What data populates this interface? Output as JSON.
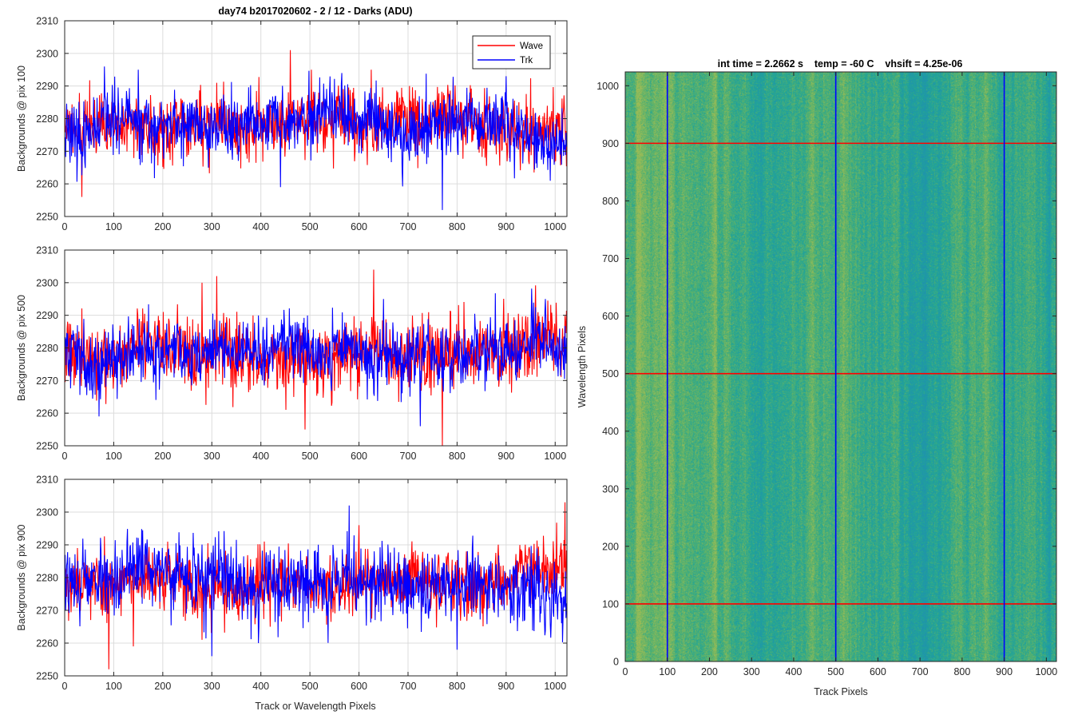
{
  "figure_title": "day74 b2017020602 - 2 / 12 - Darks (ADU)",
  "colors": {
    "wave": "#ff0000",
    "trk": "#0000ff",
    "grid": "#dcdcdc",
    "axis": "#262626"
  },
  "legend": {
    "wave": "Wave",
    "trk": "Trk",
    "placement": "top-right"
  },
  "chart_data": [
    {
      "type": "line",
      "panel": "top",
      "title": "day74 b2017020602 - 2 / 12 - Darks (ADU)",
      "ylabel": "Backgrounds @ pix 100",
      "xlabel": "",
      "xlim": [
        0,
        1024
      ],
      "ylim": [
        2250,
        2310
      ],
      "xticks": [
        "0",
        "100",
        "200",
        "300",
        "400",
        "500",
        "600",
        "700",
        "800",
        "900",
        "1000"
      ],
      "yticks": [
        "2250",
        "2260",
        "2270",
        "2280",
        "2290",
        "2300",
        "2310"
      ],
      "grid": true,
      "legend": [
        "Wave",
        "Trk"
      ],
      "series": [
        {
          "name": "Wave",
          "n_points": 1024,
          "mean": 2278,
          "spread": 5,
          "seed": 11,
          "notable": [
            [
              35,
              2256
            ],
            [
              460,
              2301
            ],
            [
              310,
              2291
            ],
            [
              625,
              2295
            ]
          ]
        },
        {
          "name": "Trk",
          "n_points": 1024,
          "mean": 2276.5,
          "spread": 5,
          "seed": 23,
          "notable": [
            [
              440,
              2259
            ],
            [
              770,
              2252
            ],
            [
              900,
              2293
            ],
            [
              150,
              2295
            ]
          ]
        }
      ]
    },
    {
      "type": "line",
      "panel": "middle",
      "ylabel": "Backgrounds @ pix 500",
      "xlabel": "",
      "xlim": [
        0,
        1024
      ],
      "ylim": [
        2250,
        2310
      ],
      "xticks": [
        "0",
        "100",
        "200",
        "300",
        "400",
        "500",
        "600",
        "700",
        "800",
        "900",
        "1000"
      ],
      "yticks": [
        "2250",
        "2260",
        "2270",
        "2280",
        "2290",
        "2300",
        "2310"
      ],
      "grid": true,
      "series": [
        {
          "name": "Wave",
          "n_points": 1024,
          "mean": 2278.5,
          "spread": 5.5,
          "seed": 37,
          "notable": [
            [
              310,
              2302
            ],
            [
              490,
              2255
            ],
            [
              630,
              2304
            ],
            [
              770,
              2250
            ],
            [
              280,
              2300
            ]
          ]
        },
        {
          "name": "Trk",
          "n_points": 1024,
          "mean": 2278.5,
          "spread": 5,
          "seed": 41,
          "notable": [
            [
              70,
              2259
            ],
            [
              725,
              2256
            ],
            [
              980,
              2295
            ],
            [
              650,
              2295
            ]
          ]
        }
      ]
    },
    {
      "type": "line",
      "panel": "bottom",
      "ylabel": "Backgrounds @ pix 900",
      "xlabel": "Track or Wavelength Pixels",
      "xlim": [
        0,
        1024
      ],
      "ylim": [
        2250,
        2310
      ],
      "xticks": [
        "0",
        "100",
        "200",
        "300",
        "400",
        "500",
        "600",
        "700",
        "800",
        "900",
        "1000"
      ],
      "yticks": [
        "2250",
        "2260",
        "2270",
        "2280",
        "2290",
        "2300",
        "2310"
      ],
      "grid": true,
      "series": [
        {
          "name": "Wave",
          "n_points": 1024,
          "mean": 2279.5,
          "spread": 5,
          "seed": 53,
          "notable": [
            [
              90,
              2252
            ],
            [
              140,
              2259
            ],
            [
              600,
              2296
            ],
            [
              1020,
              2303
            ]
          ]
        },
        {
          "name": "Trk",
          "n_points": 1024,
          "mean": 2278,
          "spread": 5.5,
          "seed": 67,
          "notable": [
            [
              580,
              2302
            ],
            [
              395,
              2260
            ],
            [
              800,
              2258
            ],
            [
              300,
              2256
            ]
          ]
        }
      ]
    },
    {
      "type": "heatmap",
      "panel": "right",
      "title": "int time = 2.2662 s    temp = -60 C    vhsift = 4.25e-06",
      "xlabel": "Track Pixels",
      "ylabel": "Wavelength Pixels",
      "xlim": [
        0,
        1024
      ],
      "ylim": [
        0,
        1024
      ],
      "xticks": [
        "0",
        "100",
        "200",
        "300",
        "400",
        "500",
        "600",
        "700",
        "800",
        "900",
        "1000"
      ],
      "yticks": [
        "0",
        "100",
        "200",
        "300",
        "400",
        "500",
        "600",
        "700",
        "800",
        "900",
        "1000"
      ],
      "colormap": [
        "#1f93ad",
        "#22a596",
        "#5cb26a",
        "#9cbc56"
      ],
      "vertical_lines": {
        "color": "#0000ff",
        "x": [
          100,
          500,
          900
        ]
      },
      "horizontal_lines": {
        "color": "#ff0000",
        "y": [
          100,
          500,
          900
        ]
      }
    }
  ]
}
